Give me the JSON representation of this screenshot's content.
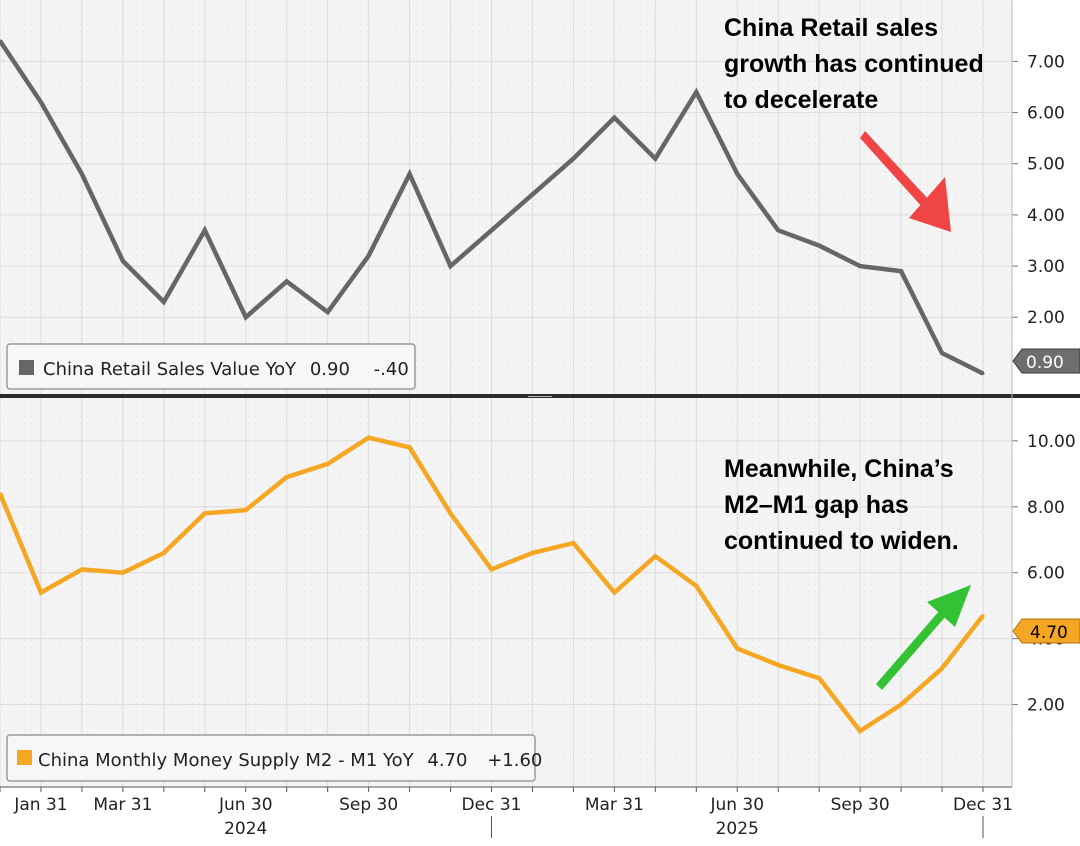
{
  "chart_data": [
    {
      "type": "line",
      "series": [
        {
          "name": "China Retail Sales Value YoY",
          "color": "#666666",
          "x": [
            "2023-12-31",
            "2024-01-31",
            "2024-02-29",
            "2024-03-31",
            "2024-04-30",
            "2024-05-31",
            "2024-06-30",
            "2024-07-31",
            "2024-08-31",
            "2024-09-30",
            "2024-10-31",
            "2024-11-30",
            "2024-12-31",
            "2025-01-31",
            "2025-02-28",
            "2025-03-31",
            "2025-04-30",
            "2025-05-31",
            "2025-06-30",
            "2025-07-31",
            "2025-08-31",
            "2025-09-30",
            "2025-10-31",
            "2025-11-30",
            "2025-12-31"
          ],
          "values": [
            7.4,
            6.2,
            4.8,
            3.1,
            2.3,
            3.7,
            2.0,
            2.7,
            2.1,
            3.2,
            4.8,
            3.0,
            3.7,
            4.4,
            5.1,
            5.9,
            5.1,
            6.4,
            4.8,
            3.7,
            3.4,
            3.0,
            2.9,
            1.3,
            0.9
          ]
        }
      ],
      "yticks": [
        "2.00",
        "3.00",
        "4.00",
        "5.00",
        "6.00",
        "7.00"
      ],
      "ylim": [
        0.5,
        8.2
      ],
      "legend": {
        "swatch": "#666666",
        "label": "China Retail Sales Value YoY",
        "last": "0.90",
        "change": "-.40"
      },
      "last_label": "0.90",
      "annotation": {
        "lines": [
          "China Retail sales",
          "growth has continued",
          "to decelerate"
        ],
        "arrow_color": "#f04545",
        "arrow_direction": "down"
      }
    },
    {
      "type": "line",
      "series": [
        {
          "name": "China Monthly Money Supply M2 - M1 YoY",
          "color": "#f5a623",
          "x": [
            "2023-12-31",
            "2024-01-31",
            "2024-02-29",
            "2024-03-31",
            "2024-04-30",
            "2024-05-31",
            "2024-06-30",
            "2024-07-31",
            "2024-08-31",
            "2024-09-30",
            "2024-10-31",
            "2024-11-30",
            "2024-12-31",
            "2025-01-31",
            "2025-02-28",
            "2025-03-31",
            "2025-04-30",
            "2025-05-31",
            "2025-06-30",
            "2025-07-31",
            "2025-08-31",
            "2025-09-30",
            "2025-10-31",
            "2025-11-30",
            "2025-12-31"
          ],
          "values": [
            8.4,
            5.4,
            6.1,
            6.0,
            6.6,
            7.8,
            7.9,
            8.9,
            9.3,
            10.1,
            9.8,
            7.8,
            6.1,
            6.6,
            6.9,
            5.4,
            6.5,
            5.6,
            3.7,
            3.2,
            2.8,
            1.2,
            2.0,
            3.1,
            4.7
          ]
        }
      ],
      "yticks": [
        "2.00",
        "4.00",
        "6.00",
        "8.00",
        "10.00"
      ],
      "ylim": [
        -0.5,
        11.3
      ],
      "legend": {
        "swatch": "#f5a623",
        "label": "China Monthly Money Supply M2 - M1 YoY",
        "last": "4.70",
        "change": "+1.60"
      },
      "last_label": "4.70",
      "annotation": {
        "lines": [
          "Meanwhile, China’s",
          "M2–M1 gap has",
          "continued to widen."
        ],
        "arrow_color": "#33c233",
        "arrow_direction": "up"
      }
    }
  ],
  "x_axis": {
    "month_labels": [
      "Jan 31",
      "Mar 31",
      "Jun 30",
      "Sep 30",
      "Dec 31",
      "Mar 31",
      "Jun 30",
      "Sep 30",
      "Dec 31"
    ],
    "month_label_index": [
      1,
      3,
      6,
      9,
      12,
      15,
      18,
      21,
      24
    ],
    "year_labels": [
      "2024",
      "2025"
    ],
    "year_label_index": [
      6,
      18
    ]
  }
}
